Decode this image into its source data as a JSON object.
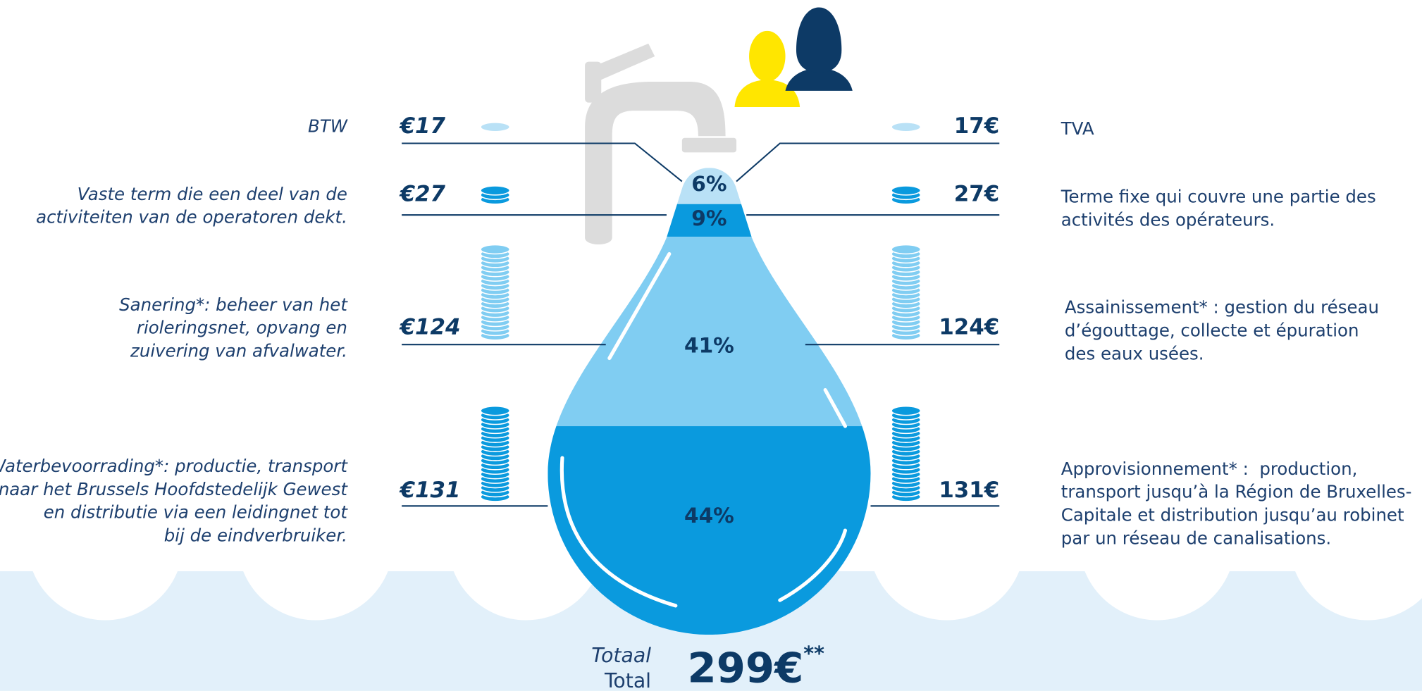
{
  "rows": [
    {
      "nl_amount": "€17",
      "nl_label": [
        "BTW"
      ],
      "share": "6%",
      "fr_amount": "17€",
      "fr_label": [
        "TVA"
      ]
    },
    {
      "nl_amount": "€27",
      "nl_label": [
        "Vaste term die een deel van de",
        "activiteiten van de operatoren dekt."
      ],
      "share": "9%",
      "fr_amount": "27€",
      "fr_label": [
        "Terme fixe qui couvre une partie des",
        "activités des opérateurs."
      ]
    },
    {
      "nl_amount": "€124",
      "nl_label": [
        "Sanering*: beheer van het",
        "rioleringsnet, opvang en",
        "zuivering van afvalwater."
      ],
      "share": "41%",
      "fr_amount": "124€",
      "fr_label": [
        "Assainissement* : gestion du réseau",
        "d’égouttage, collecte et épuration",
        "des eaux usées."
      ]
    },
    {
      "nl_amount": "€131",
      "nl_label": [
        "Waterbevoorrading*: productie, transport",
        "naar het Brussels Hoofdstedelijk Gewest",
        "en distributie via een leidingnet tot",
        "bij de eindverbruiker."
      ],
      "share": "44%",
      "fr_amount": "131€",
      "fr_label": [
        "Approvisionnement* :  production,",
        "transport jusqu’à la Région de Bruxelles-",
        "Capitale et distribution jusqu’au robinet",
        "par un réseau de canalisations."
      ]
    }
  ],
  "total": {
    "nl": "Totaal",
    "fr": "Total",
    "amount": "299€",
    "note": "**"
  }
}
